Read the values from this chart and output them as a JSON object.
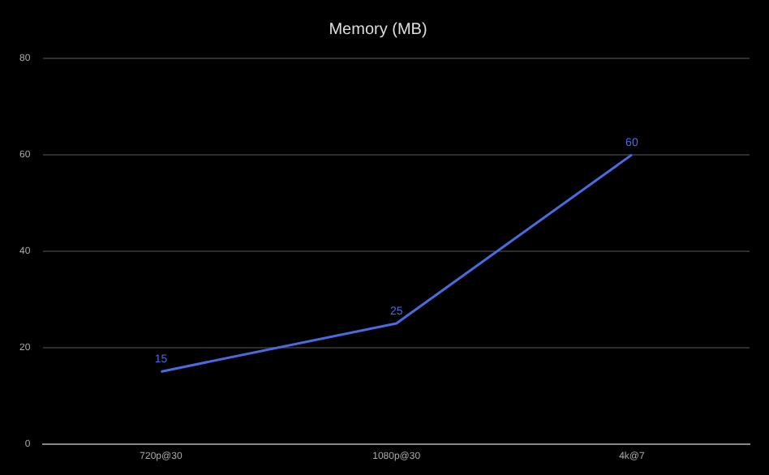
{
  "chart_data": {
    "type": "line",
    "title": "Memory (MB)",
    "categories": [
      "720p@30",
      "1080p@30",
      "4k@7"
    ],
    "series": [
      {
        "color": "#4a6be0",
        "values": [
          15,
          25,
          60
        ]
      }
    ],
    "ylim": [
      0,
      80
    ],
    "yticks": [
      0,
      20,
      40,
      60,
      80
    ],
    "grid": "y",
    "legend": false,
    "marker": "none",
    "data_labels": true
  }
}
